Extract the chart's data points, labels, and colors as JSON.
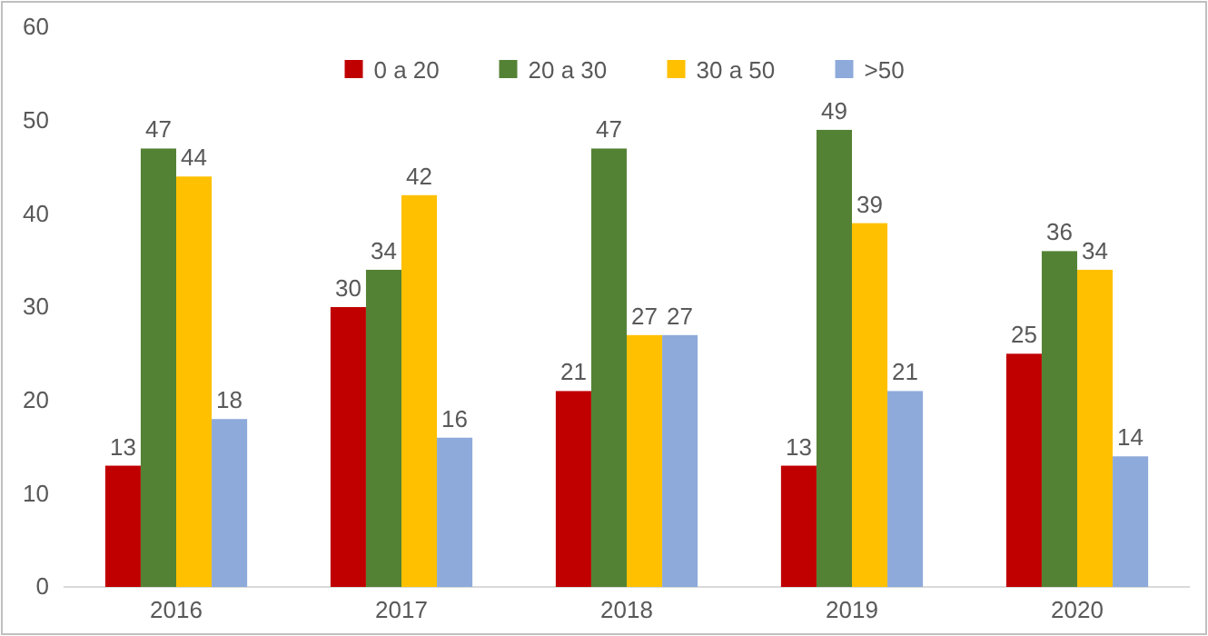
{
  "chart_data": {
    "type": "bar",
    "categories": [
      "2016",
      "2017",
      "2018",
      "2019",
      "2020"
    ],
    "series": [
      {
        "name": "0 a 20",
        "color": "#c00000",
        "values": [
          13,
          30,
          21,
          13,
          25
        ]
      },
      {
        "name": "20 a 30",
        "color": "#548235",
        "values": [
          47,
          34,
          47,
          49,
          36
        ]
      },
      {
        "name": "30 a 50",
        "color": "#ffc000",
        "values": [
          44,
          42,
          27,
          39,
          34
        ]
      },
      {
        "name": ">50",
        "color": "#8eaadb",
        "values": [
          18,
          16,
          27,
          21,
          14
        ]
      }
    ],
    "ylim": [
      0,
      60
    ],
    "yticks": [
      0,
      10,
      20,
      30,
      40,
      50,
      60
    ],
    "data_labels": true,
    "legend": "top",
    "grid": false
  }
}
